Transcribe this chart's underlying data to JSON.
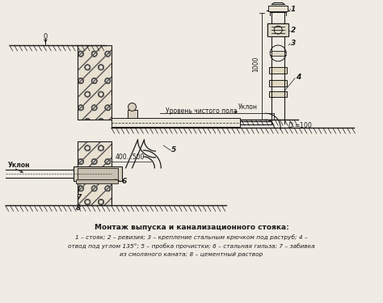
{
  "title": "Монтаж выпуска и канализационного стояка:",
  "caption_line1": "1 – стояк; 2 – ревизия; 3 – крепление стальным крючком под раструб; 4 –",
  "caption_line2": "отвод под углом 135°; 5 – пробка прочистки; 6 – стальная гильза; 7 – забивка",
  "caption_line3": "из смоляного каната; 8 – цементный раствор",
  "bg_color": "#f0ece4",
  "line_color": "#1a1a1a",
  "wall_face": "#e8e0d0",
  "wall_ec": "#555555"
}
